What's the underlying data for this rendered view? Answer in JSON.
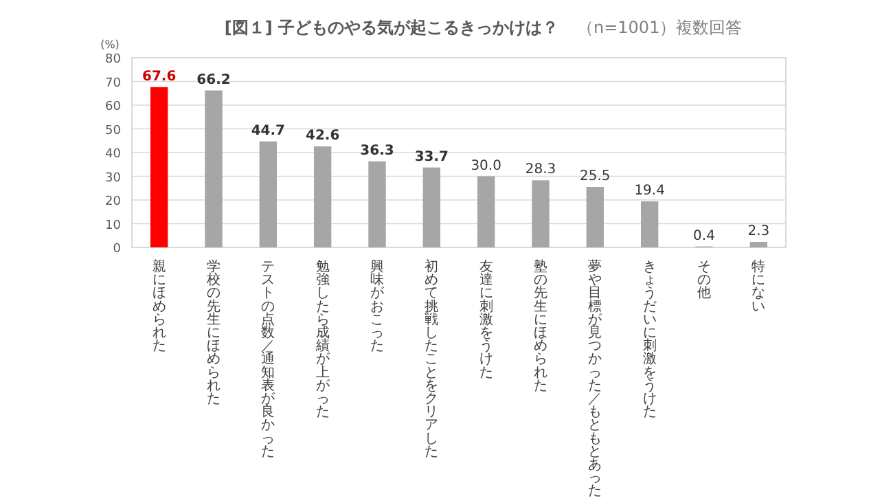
{
  "chart_data": {
    "type": "bar",
    "title": "[図１] 子どものやる気が起こるきっかけは？",
    "subtitle": "（n=1001）複数回答",
    "ylabel": "(%)",
    "categories": [
      "親にほめられた",
      "学校の先生にほめられた",
      "テストの点数／通知表が良かった",
      "勉強したら成績が上がった",
      "興味がおこった",
      "初めて挑戦したことをクリアした",
      "友達に刺激をうけた",
      "塾の先生にほめられた",
      "夢や目標が見つかった／もともとあった",
      "きょうだいに刺激をうけた",
      "その他",
      "特にない"
    ],
    "values": [
      67.6,
      66.2,
      44.7,
      42.6,
      36.3,
      33.7,
      30.0,
      28.3,
      25.5,
      19.4,
      0.4,
      2.3
    ],
    "value_labels": [
      "67.6",
      "66.2",
      "44.7",
      "42.6",
      "36.3",
      "33.7",
      "30.0",
      "28.3",
      "25.5",
      "19.4",
      "0.4",
      "2.3"
    ],
    "colors": [
      "#ff0000",
      "#a6a6a6",
      "#a6a6a6",
      "#a6a6a6",
      "#a6a6a6",
      "#a6a6a6",
      "#a6a6a6",
      "#a6a6a6",
      "#a6a6a6",
      "#a6a6a6",
      "#a6a6a6",
      "#a6a6a6"
    ],
    "ylim": [
      0,
      80
    ],
    "yticks": [
      0,
      10,
      20,
      30,
      40,
      50,
      60,
      70,
      80
    ],
    "grid": "y"
  }
}
